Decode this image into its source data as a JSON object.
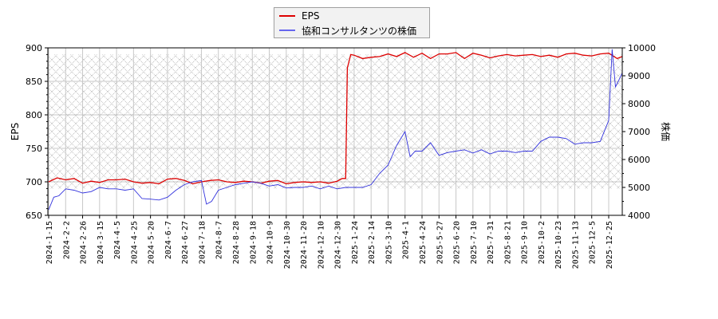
{
  "chart_data": {
    "type": "line",
    "title": "",
    "xlabel": "",
    "ylabel_left": "EPS",
    "ylabel_right": "株価",
    "ylim_left": [
      650,
      900
    ],
    "ylim_right": [
      4000,
      10000
    ],
    "yticks_left": [
      650,
      700,
      750,
      800,
      850,
      900
    ],
    "yticks_right": [
      4000,
      5000,
      6000,
      7000,
      8000,
      9000,
      10000
    ],
    "grid": true,
    "legend_position": "top-center",
    "hatch_band_left": [
      690,
      890
    ],
    "x_tick_labels": [
      "2024-1-15",
      "2024-2-2",
      "2024-2-26",
      "2024-3-15",
      "2024-4-5",
      "2024-4-25",
      "2024-5-20",
      "2024-6-7",
      "2024-6-27",
      "2024-7-18",
      "2024-8-7",
      "2024-8-28",
      "2024-9-18",
      "2024-10-9",
      "2024-10-30",
      "2024-11-20",
      "2024-12-10",
      "2024-12-30",
      "2025-1-24",
      "2025-2-14",
      "2025-3-10",
      "2025-4-1",
      "2025-4-24",
      "2025-5-27",
      "2025-6-20",
      "2025-7-10",
      "2025-7-31",
      "2025-8-21",
      "2025-9-10",
      "2025-10-2",
      "2025-10-23",
      "2025-11-13",
      "2025-12-5",
      "2025-12-25"
    ],
    "series": [
      {
        "name": "EPS",
        "color": "#dd0000",
        "axis": "left",
        "x_tick_index": [
          0,
          0.5,
          1,
          1.5,
          2,
          2.5,
          3,
          3.5,
          4,
          4.5,
          5,
          5.5,
          6,
          6.5,
          7,
          7.5,
          8,
          8.5,
          9,
          9.5,
          10,
          10.5,
          11,
          11.5,
          12,
          12.5,
          13,
          13.5,
          14,
          14.5,
          15,
          15.5,
          16,
          16.5,
          17,
          17.3,
          17.5,
          17.6,
          17.8,
          18,
          18.5,
          19,
          19.5,
          20,
          20.5,
          21,
          21.5,
          22,
          22.5,
          23,
          23.5,
          24,
          24.5,
          25,
          25.5,
          26,
          26.5,
          27,
          27.5,
          28,
          28.5,
          29,
          29.5,
          30,
          30.5,
          31,
          31.5,
          32,
          32.5,
          33,
          33.5,
          34
        ],
        "values": [
          700,
          706,
          703,
          705,
          698,
          701,
          699,
          703,
          703,
          704,
          700,
          698,
          699,
          697,
          704,
          705,
          702,
          697,
          700,
          702,
          703,
          700,
          699,
          701,
          700,
          698,
          701,
          702,
          697,
          699,
          700,
          699,
          700,
          698,
          701,
          705,
          705,
          870,
          890,
          889,
          884,
          886,
          887,
          891,
          887,
          893,
          886,
          892,
          884,
          891,
          891,
          893,
          884,
          892,
          889,
          885,
          888,
          890,
          888,
          889,
          890,
          887,
          889,
          886,
          891,
          892,
          889,
          888,
          891,
          892,
          884,
          887,
          886
        ]
      },
      {
        "name": "協和コンサルタンツの株価",
        "color": "#3333dd",
        "axis": "right",
        "x_tick_index": [
          0,
          0.3,
          0.6,
          1,
          1.5,
          2,
          2.5,
          3,
          3.5,
          4,
          4.5,
          5,
          5.5,
          6,
          6.5,
          7,
          7.5,
          8,
          8.5,
          9,
          9.3,
          9.6,
          10,
          10.5,
          11,
          11.5,
          12,
          12.5,
          13,
          13.5,
          14,
          14.5,
          15,
          15.5,
          16,
          16.5,
          17,
          17.5,
          18,
          18.5,
          19,
          19.5,
          20,
          20.5,
          21,
          21.3,
          21.6,
          22,
          22.5,
          23,
          23.5,
          24,
          24.5,
          25,
          25.5,
          26,
          26.5,
          27,
          27.5,
          28,
          28.5,
          29,
          29.5,
          30,
          30.5,
          31,
          31.5,
          32,
          32.5,
          33,
          33.2,
          33.4,
          33.6,
          33.8,
          34
        ],
        "values": [
          4200,
          4650,
          4700,
          4950,
          4900,
          4800,
          4850,
          5000,
          4950,
          4950,
          4900,
          4950,
          4600,
          4580,
          4550,
          4650,
          4900,
          5100,
          5200,
          5250,
          4400,
          4500,
          4900,
          5000,
          5100,
          5150,
          5200,
          5150,
          5050,
          5100,
          4980,
          5000,
          5000,
          5050,
          4950,
          5050,
          4950,
          5000,
          5000,
          5000,
          5100,
          5500,
          5800,
          6500,
          7000,
          6100,
          6300,
          6300,
          6600,
          6150,
          6250,
          6300,
          6350,
          6230,
          6350,
          6200,
          6300,
          6300,
          6250,
          6300,
          6300,
          6650,
          6800,
          6800,
          6750,
          6550,
          6600,
          6600,
          6650,
          7400,
          9950,
          8600,
          8850,
          9100,
          9200
        ]
      }
    ]
  },
  "legend": {
    "items": [
      {
        "label": "EPS",
        "color": "#dd0000"
      },
      {
        "label": "協和コンサルタンツの株価",
        "color": "#6666ee"
      }
    ]
  },
  "axes": {
    "left_label": "EPS",
    "right_label": "株価"
  }
}
